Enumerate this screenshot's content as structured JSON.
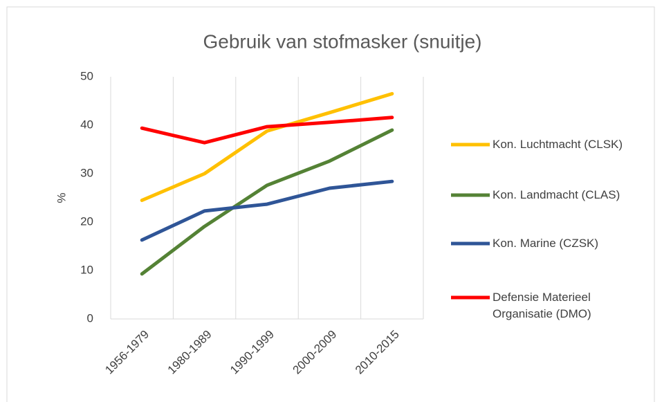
{
  "chart_data": {
    "type": "line",
    "title": "Gebruik van stofmasker (snuitje)",
    "y_label": "%",
    "categories": [
      "1956-1979",
      "1980-1989",
      "1990-1999",
      "2000-2009",
      "2010-2015"
    ],
    "series": [
      {
        "name": "Kon. Luchtmacht (CLSK)",
        "color": "#ffc000",
        "values": [
          24.5,
          30,
          38.8,
          42.6,
          46.5
        ]
      },
      {
        "name": "Kon. Landmacht (CLAS)",
        "color": "#548235",
        "values": [
          9.3,
          19.1,
          27.6,
          32.6,
          39
        ]
      },
      {
        "name": "Kon. Marine (CZSK)",
        "color": "#2f5597",
        "values": [
          16.3,
          22.3,
          23.7,
          27,
          28.4
        ]
      },
      {
        "name": "Defensie Materieel Organisatie (DMO)",
        "color": "#ff0000",
        "values": [
          39.4,
          36.4,
          39.7,
          40.6,
          41.6
        ]
      }
    ],
    "ylim": [
      0,
      50
    ],
    "yticks": [
      0,
      10,
      20,
      30,
      40,
      50
    ],
    "grid": "vertical",
    "legend": "right"
  }
}
